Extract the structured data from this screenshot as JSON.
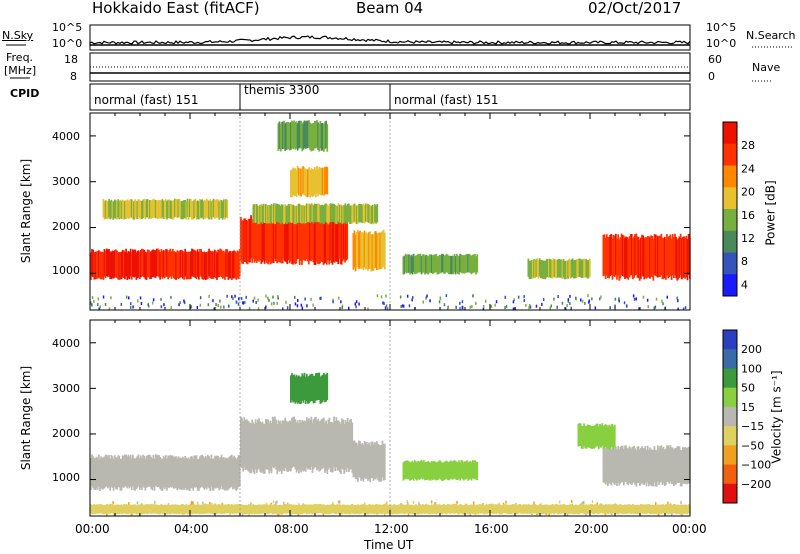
{
  "header": {
    "station": "Hokkaido East (fitACF)",
    "beam": "Beam 04",
    "date": "02/Oct/2017"
  },
  "top_panels": {
    "nsky_label": "N.Sky",
    "nsky_ticks": [
      "10^5",
      "10^0"
    ],
    "nsearch_label": "N.Search",
    "freq_label_1": "Freq.",
    "freq_label_2": "[MHz]",
    "freq_ticks": [
      "18",
      "8"
    ],
    "nave_label": "Nave",
    "nave_ticks": [
      "60",
      "0"
    ],
    "cpid_label": "CPID",
    "cpid_segments": [
      {
        "label": "normal (fast) 151",
        "start_h": 0,
        "end_h": 6
      },
      {
        "label": "themis 3300",
        "start_h": 6,
        "end_h": 12
      },
      {
        "label": "normal (fast) 151",
        "start_h": 12,
        "end_h": 24
      }
    ]
  },
  "colors": {
    "power": [
      "#1a1aff",
      "#3355bb",
      "#4a8a5a",
      "#78b040",
      "#e8c030",
      "#ff8800",
      "#ff3300",
      "#ee1100"
    ],
    "velocity": [
      "#2a40c0",
      "#3a6aa8",
      "#3c9a3c",
      "#88d040",
      "#b8b8b0",
      "#e0d060",
      "#f0a020",
      "#f06010",
      "#e01010"
    ]
  },
  "chart_data": [
    {
      "type": "heatmap",
      "quantity": "power",
      "ylabel": "Slant Range [km]",
      "xlabel": "",
      "xlim": [
        0,
        24
      ],
      "ylim": [
        200,
        4500
      ],
      "yticks": [
        1000,
        2000,
        3000,
        4000
      ],
      "colorbar_label": "Power [dB]",
      "colorbar_ticks": [
        "28",
        "24",
        "20",
        "16",
        "12",
        "8",
        "4"
      ],
      "colorbar_range": [
        0,
        30
      ],
      "regions": [
        {
          "t0": 0,
          "t1": 6,
          "r0": 900,
          "r1": 1500,
          "level": 28
        },
        {
          "t0": 6,
          "t1": 10.3,
          "r0": 1250,
          "r1": 2200,
          "level": 27
        },
        {
          "t0": 6.5,
          "t1": 11.5,
          "r0": 2100,
          "r1": 2500,
          "level": 14
        },
        {
          "t0": 8,
          "t1": 9.5,
          "r0": 2700,
          "r1": 3300,
          "level": 18
        },
        {
          "t0": 10.5,
          "t1": 11.8,
          "r0": 1100,
          "r1": 1900,
          "level": 20
        },
        {
          "t0": 0.5,
          "t1": 5.5,
          "r0": 2200,
          "r1": 2600,
          "level": 15
        },
        {
          "t0": 20.5,
          "t1": 24,
          "r0": 900,
          "r1": 1800,
          "level": 27
        },
        {
          "t0": 12.5,
          "t1": 15.5,
          "r0": 1000,
          "r1": 1400,
          "level": 12
        },
        {
          "t0": 7.5,
          "t1": 9.5,
          "r0": 3700,
          "r1": 4300,
          "level": 12
        },
        {
          "t0": 17.5,
          "t1": 20,
          "r0": 900,
          "r1": 1300,
          "level": 14
        }
      ]
    },
    {
      "type": "heatmap",
      "quantity": "velocity",
      "ylabel": "Slant Range [km]",
      "xlabel": "Time UT",
      "xticks": [
        "00:00",
        "04:00",
        "08:00",
        "12:00",
        "16:00",
        "20:00",
        "00:00"
      ],
      "xlim": [
        0,
        24
      ],
      "ylim": [
        200,
        4500
      ],
      "yticks": [
        1000,
        2000,
        3000,
        4000
      ],
      "colorbar_label": "Velocity [m s⁻¹]",
      "colorbar_ticks": [
        "200",
        "100",
        "50",
        "15",
        "−15",
        "−50",
        "−100",
        "−200"
      ],
      "regions": [
        {
          "t0": 0,
          "t1": 6,
          "r0": 800,
          "r1": 1500,
          "velocity": 0
        },
        {
          "t0": 6,
          "t1": 10.5,
          "r0": 1200,
          "r1": 2300,
          "velocity": 0
        },
        {
          "t0": 10.5,
          "t1": 11.8,
          "r0": 1000,
          "r1": 1800,
          "velocity": 0
        },
        {
          "t0": 8,
          "t1": 9.5,
          "r0": 2700,
          "r1": 3300,
          "velocity": 60
        },
        {
          "t0": 20.5,
          "t1": 24,
          "r0": 900,
          "r1": 1700,
          "velocity": 0
        },
        {
          "t0": 12.5,
          "t1": 15.5,
          "r0": 1000,
          "r1": 1400,
          "velocity": 40
        },
        {
          "t0": 19.5,
          "t1": 21,
          "r0": 1700,
          "r1": 2200,
          "velocity": 40
        },
        {
          "t0": 0,
          "t1": 24,
          "r0": 250,
          "r1": 450,
          "velocity": -40
        }
      ]
    }
  ]
}
